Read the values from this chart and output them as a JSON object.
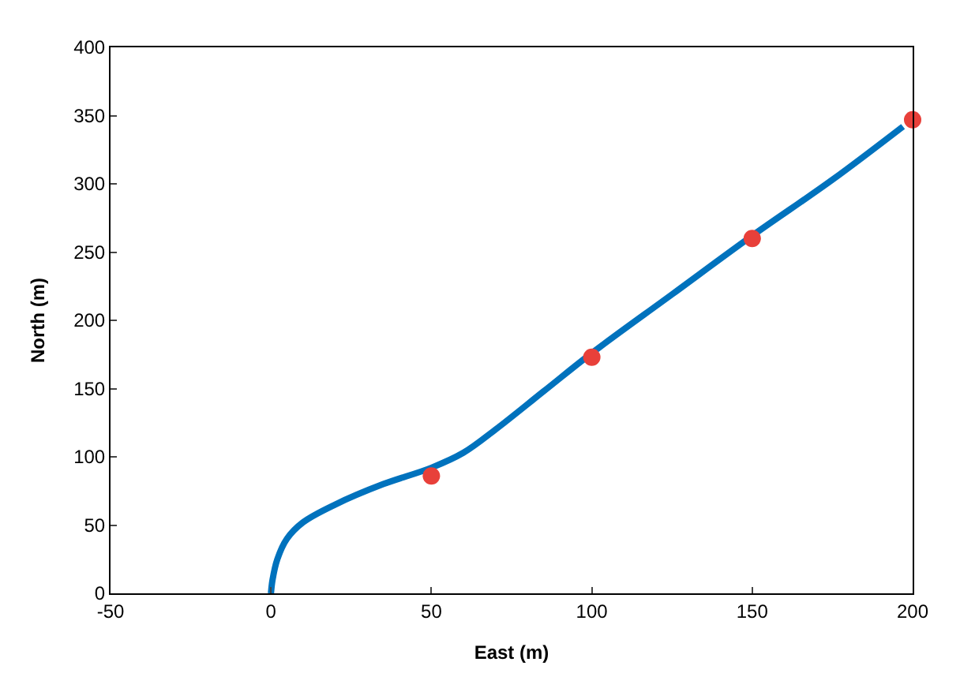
{
  "chart_data": {
    "type": "line",
    "xlabel": "East (m)",
    "ylabel": "North (m)",
    "xlim": [
      -50,
      200
    ],
    "xticks": [
      -50,
      0,
      50,
      100,
      150,
      200
    ],
    "ylim": [
      0,
      400
    ],
    "yticks": [
      0,
      50,
      100,
      150,
      200,
      250,
      300,
      350,
      400
    ],
    "grid": false,
    "legend": false,
    "series": [
      {
        "color": "#0072bd",
        "line_style": "solid",
        "marker": "none",
        "x": [
          0,
          0.5,
          2,
          5,
          10,
          20,
          35,
          50,
          60,
          70,
          85,
          100,
          125,
          150,
          175,
          197
        ],
        "values": [
          0,
          10,
          25,
          40,
          52,
          65,
          80,
          92,
          103,
          120,
          148,
          176,
          219,
          262,
          303,
          342
        ]
      },
      {
        "type": "scatter",
        "color": "#e8403a",
        "marker": "circle",
        "x": [
          50,
          100,
          150,
          200
        ],
        "values": [
          86,
          173,
          260,
          347
        ]
      }
    ]
  }
}
